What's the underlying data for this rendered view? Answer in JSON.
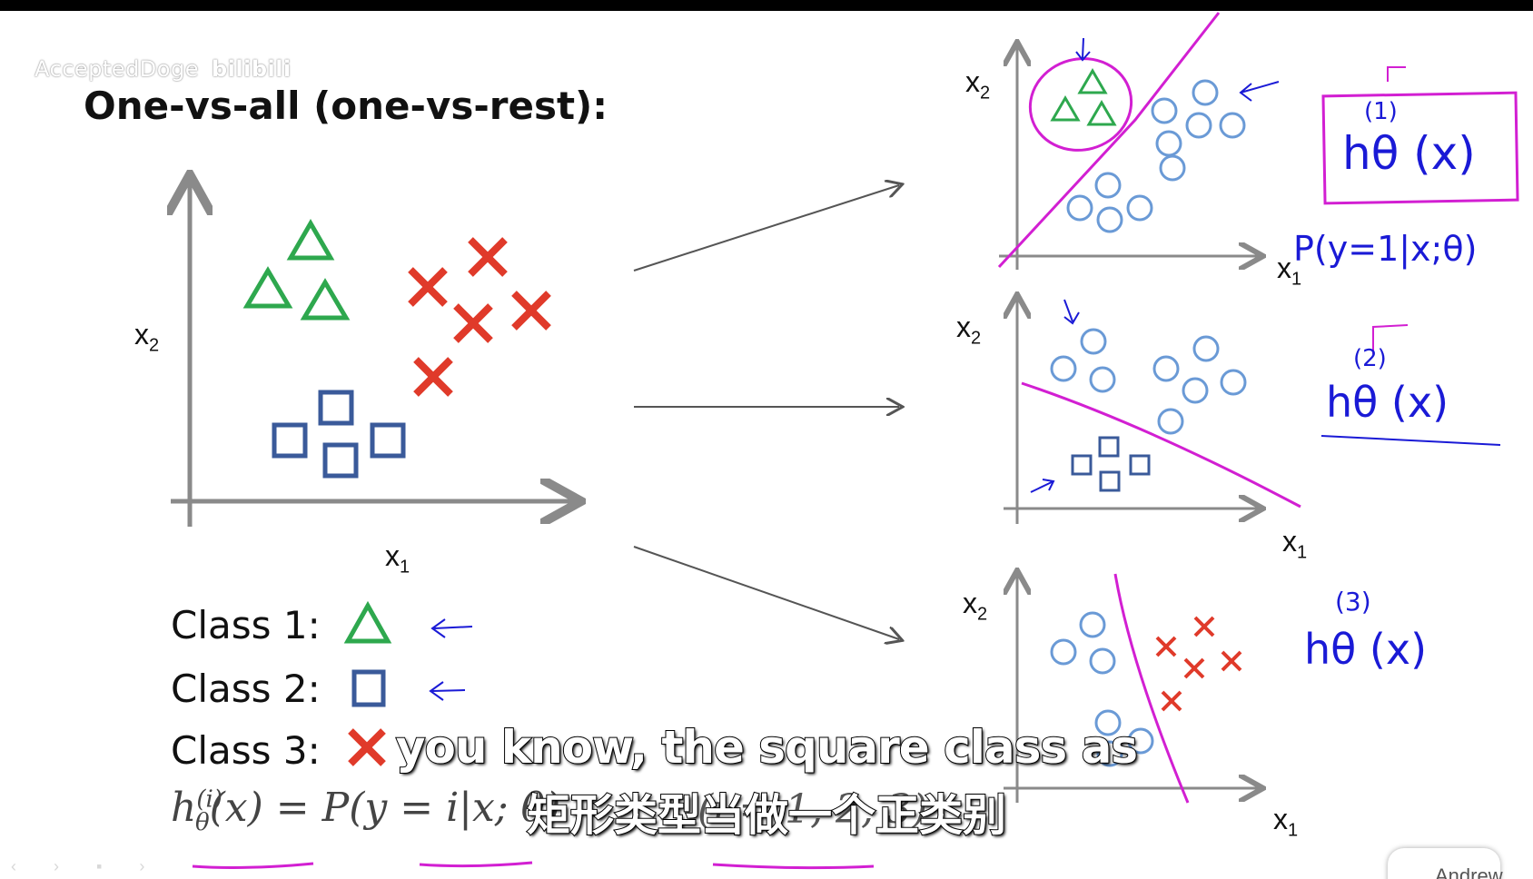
{
  "watermark": {
    "user": "AcceptedDoge",
    "site": "bilibili"
  },
  "slide": {
    "title": "One-vs-all (one-vs-rest):",
    "main_plot": {
      "x_label": "x",
      "x_sub": "1",
      "y_label": "x",
      "y_sub": "2"
    },
    "legend": [
      {
        "label": "Class 1:",
        "marker": "triangle-icon",
        "color": "#2ea84e"
      },
      {
        "label": "Class 2:",
        "marker": "square-icon",
        "color": "#3a5a9a"
      },
      {
        "label": "Class 3:",
        "marker": "cross-icon",
        "color": "#e03a2a"
      }
    ],
    "formula": "h",
    "formula_sup": "(i)",
    "formula_sub": "θ",
    "formula_rest": "(x) = P(y = i|x; θ)",
    "formula_range": "(i = 1, 2, 3)",
    "sub_plots": [
      {
        "x_label": "x",
        "x_sub": "1",
        "y_label": "x",
        "y_sub": "2"
      },
      {
        "x_label": "x",
        "x_sub": "1",
        "y_label": "x",
        "y_sub": "2"
      },
      {
        "x_label": "x",
        "x_sub": "1",
        "y_label": "x",
        "y_sub": "2"
      }
    ],
    "annotations": {
      "h1_sup": "(1)",
      "h1": "hθ (x)",
      "prob": "P(y=1|x;θ)",
      "h2_sup": "(2)",
      "h2": "hθ (x)",
      "h3_sup": "(3)",
      "h3": "hθ (x)"
    },
    "credit": "Andrew Ng"
  },
  "subtitles": {
    "english": "you know, the square class as",
    "chinese": "矩形类型当做一个正类别"
  },
  "colors": {
    "class1": "#2ea84e",
    "class2": "#3a5a9a",
    "class3": "#e03a2a",
    "light_circle": "#6a9ad6",
    "pen_magenta": "#d21fd2",
    "pen_blue": "#1a1ad6",
    "axis": "#8a8a8a"
  }
}
